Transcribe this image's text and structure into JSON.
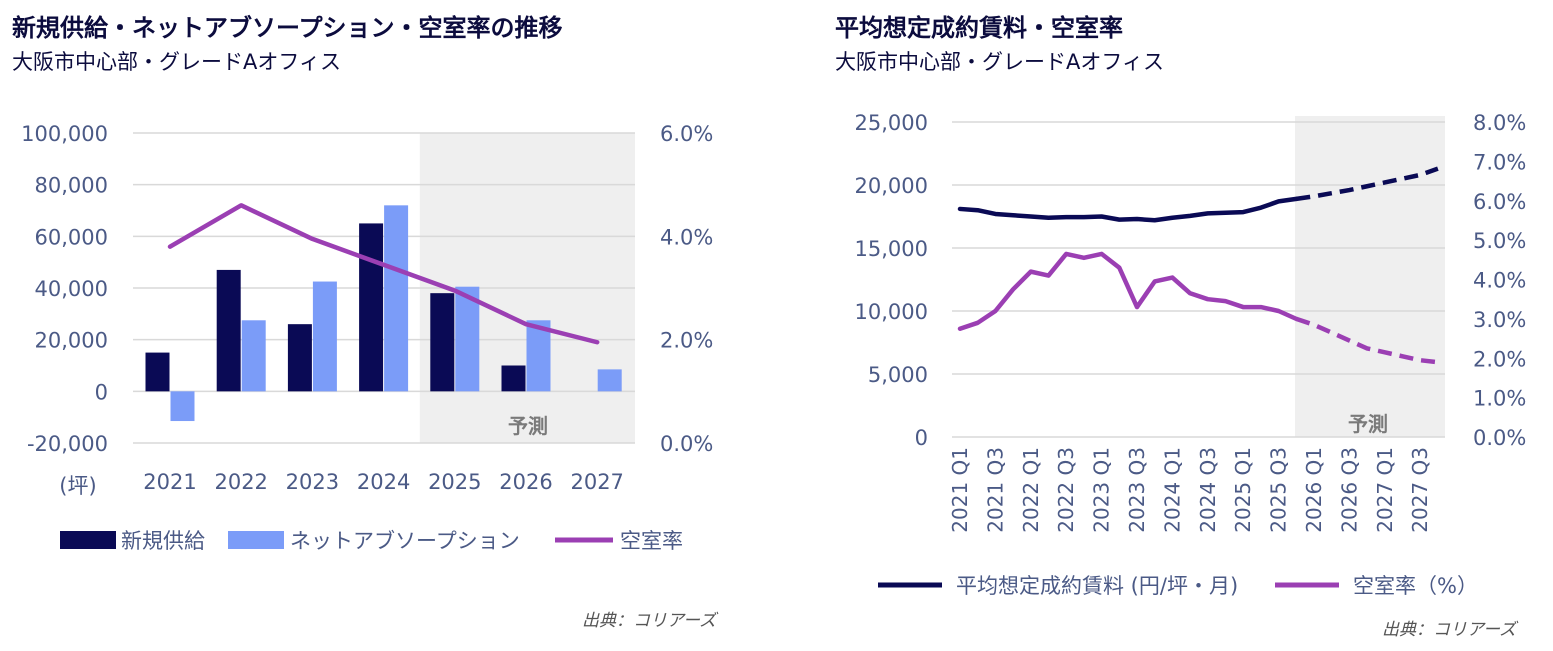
{
  "colors": {
    "navy": "#0a0a55",
    "blue": "#7b9cf8",
    "purple": "#9b3fb3",
    "axis_text": "#4b5a86",
    "grid": "#d9d9d9",
    "forecast_bg": "#efefef",
    "title": "#0c0c3e"
  },
  "left_panel": {
    "title": "新規供給・ネットアブソープション・空室率の推移",
    "subtitle": "大阪市中心部・グレードAオフィス",
    "source": "出典：コリアーズ"
  },
  "right_panel": {
    "title": "平均想定成約賃料・空室率",
    "subtitle": "大阪市中心部・グレードAオフィス",
    "source": "出典：コリアーズ"
  },
  "chart_data": [
    {
      "type": "bar",
      "categories": [
        "2021",
        "2022",
        "2023",
        "2024",
        "2025",
        "2026",
        "2027"
      ],
      "series": [
        {
          "name": "新規供給",
          "axis": "left",
          "kind": "bar",
          "color": "navy",
          "values": [
            15000,
            47000,
            26000,
            65000,
            38000,
            10000,
            0
          ]
        },
        {
          "name": "ネットアブソープション",
          "axis": "left",
          "kind": "bar",
          "color": "blue",
          "values": [
            -11500,
            27500,
            42500,
            72000,
            40500,
            27500,
            8500
          ]
        },
        {
          "name": "空室率",
          "axis": "right",
          "kind": "line",
          "color": "purple",
          "values": [
            3.8,
            4.6,
            3.95,
            3.45,
            2.95,
            2.3,
            1.95
          ]
        }
      ],
      "y_left": {
        "min": -20000,
        "max": 100000,
        "ticks": [
          "100,000",
          "80,000",
          "60,000",
          "40,000",
          "20,000",
          "0",
          "-20,000"
        ],
        "unit_label": "(坪)"
      },
      "y_right": {
        "min": 0,
        "max": 6,
        "ticks": [
          "6.0%",
          "4.0%",
          "2.0%",
          "0.0%"
        ]
      },
      "forecast_label": "予測",
      "forecast_from": "2025"
    },
    {
      "type": "line",
      "categories": [
        "2021 Q1",
        "2021 Q2",
        "2021 Q3",
        "2021 Q4",
        "2022 Q1",
        "2022 Q2",
        "2022 Q3",
        "2022 Q4",
        "2023 Q1",
        "2023 Q2",
        "2023 Q3",
        "2023 Q4",
        "2024 Q1",
        "2024 Q2",
        "2024 Q3",
        "2024 Q4",
        "2025 Q1",
        "2025 Q2",
        "2025 Q3",
        "2025 Q4",
        "2026 Q1",
        "2026 Q2",
        "2026 Q3",
        "2026 Q4",
        "2027 Q1",
        "2027 Q2",
        "2027 Q3",
        "2027 Q4"
      ],
      "tick_labels": [
        "2021 Q1",
        "2021 Q3",
        "2022 Q1",
        "2022 Q3",
        "2023 Q1",
        "2023 Q3",
        "2024 Q1",
        "2024 Q3",
        "2025 Q1",
        "2025 Q3",
        "2026 Q1",
        "2026 Q3",
        "2027 Q1",
        "2027 Q3"
      ],
      "series": [
        {
          "name": "平均想定成約賃料 (円/坪・月)",
          "axis": "left",
          "color": "navy",
          "values": [
            18100,
            18000,
            17700,
            17600,
            17500,
            17400,
            17450,
            17450,
            17500,
            17250,
            17300,
            17200,
            17400,
            17550,
            17750,
            17800,
            17850,
            18200,
            18700,
            18900,
            19100,
            19350,
            19600,
            19900,
            20200,
            20500,
            20800,
            21300
          ]
        },
        {
          "name": "空室率（%）",
          "axis": "right",
          "color": "purple",
          "values": [
            2.75,
            2.9,
            3.2,
            3.75,
            4.2,
            4.1,
            4.65,
            4.55,
            4.65,
            4.3,
            3.3,
            3.95,
            4.05,
            3.65,
            3.5,
            3.45,
            3.3,
            3.3,
            3.2,
            3.0,
            2.85,
            2.65,
            2.45,
            2.25,
            2.15,
            2.05,
            1.95,
            1.9
          ]
        }
      ],
      "forecast_from_index": 20,
      "y_left": {
        "min": 0,
        "max": 25000,
        "ticks": [
          "25,000",
          "20,000",
          "15,000",
          "10,000",
          "5,000",
          "0"
        ]
      },
      "y_right": {
        "min": 0,
        "max": 8,
        "ticks": [
          "8.0%",
          "7.0%",
          "6.0%",
          "5.0%",
          "4.0%",
          "3.0%",
          "2.0%",
          "1.0%",
          "0.0%"
        ]
      },
      "forecast_label": "予測"
    }
  ]
}
